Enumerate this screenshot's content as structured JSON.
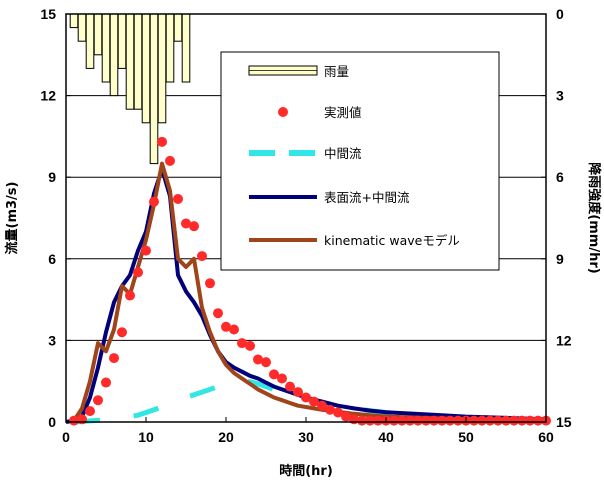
{
  "chart_data": {
    "type": "line",
    "title": "",
    "xlabel": "時間(hr)",
    "ylabel": "流量(m3/s)",
    "y2label": "降雨強度(mm/hr)",
    "xlim": [
      0,
      60
    ],
    "ylim": [
      0,
      15
    ],
    "y2lim": [
      0,
      15
    ],
    "y2_inverted": true,
    "grid": "horizontal",
    "legend_position": "top-right",
    "x_ticks": [
      "0",
      "10",
      "20",
      "30",
      "40",
      "50",
      "60"
    ],
    "y_ticks": [
      "0",
      "3",
      "6",
      "9",
      "12",
      "15"
    ],
    "y2_ticks": [
      "15",
      "12",
      "9",
      "6",
      "3",
      "0"
    ],
    "colors": {
      "rain_fill": "#FFFFCC",
      "observed": "#FF2A2A",
      "interflow": "#33E6E6",
      "surface_interflow": "#00007A",
      "kinematic": "#A0441A",
      "grid": "#000000"
    },
    "rain": {
      "name": "雨量",
      "x": [
        1,
        2,
        3,
        4,
        5,
        6,
        7,
        8,
        9,
        10,
        11,
        12,
        13,
        14,
        15
      ],
      "values": [
        0.5,
        1.0,
        2.0,
        1.5,
        2.5,
        3.0,
        2.0,
        3.5,
        3.5,
        4.0,
        5.5,
        4.0,
        2.5,
        1.0,
        2.5
      ]
    },
    "series": [
      {
        "name": "実測値",
        "kind": "markers",
        "x": [
          1,
          2,
          3,
          4,
          5,
          6,
          7,
          8,
          9,
          10,
          11,
          12,
          13,
          14,
          15,
          16,
          17,
          18,
          19,
          20,
          21,
          22,
          23,
          24,
          25,
          26,
          27,
          28,
          29,
          30,
          31,
          32,
          33,
          34,
          35,
          36,
          37,
          38,
          39,
          40,
          41,
          42,
          43,
          44,
          45,
          46,
          47,
          48,
          49,
          50,
          51,
          52,
          53,
          54,
          55,
          56,
          57,
          58,
          59,
          60
        ],
        "values": [
          0.05,
          0.1,
          0.4,
          0.8,
          1.45,
          2.35,
          3.3,
          4.65,
          5.5,
          6.3,
          8.1,
          10.3,
          9.6,
          8.2,
          7.3,
          7.2,
          6.1,
          5.1,
          4.0,
          3.5,
          3.4,
          2.9,
          2.8,
          2.3,
          2.2,
          1.75,
          1.6,
          1.3,
          1.1,
          0.9,
          0.75,
          0.6,
          0.45,
          0.35,
          0.2,
          0.1,
          0.05,
          0.05,
          0.05,
          0.05,
          0.05,
          0.05,
          0.05,
          0.05,
          0.05,
          0.05,
          0.05,
          0.05,
          0.05,
          0.05,
          0.05,
          0.05,
          0.05,
          0.05,
          0.05,
          0.05,
          0.05,
          0.05,
          0.05,
          0.05
        ]
      },
      {
        "name": "中間流",
        "kind": "dashed",
        "x": [
          1,
          2,
          3,
          4,
          5,
          6,
          7,
          8,
          9,
          10,
          11,
          12,
          13,
          14,
          15,
          16,
          17,
          18,
          19,
          20,
          21,
          22,
          23,
          24,
          25,
          26,
          27,
          28,
          29,
          30,
          31,
          32,
          33,
          34,
          35,
          36,
          37,
          38,
          39,
          40,
          41,
          42,
          43,
          44,
          45,
          46,
          47,
          48,
          49,
          50,
          51,
          52,
          53,
          54,
          55,
          56,
          57,
          58,
          59,
          60
        ],
        "values": [
          0.0,
          0.02,
          0.04,
          0.06,
          0.08,
          0.12,
          0.15,
          0.2,
          0.25,
          0.35,
          0.45,
          0.55,
          0.65,
          0.75,
          0.9,
          1.0,
          1.1,
          1.2,
          1.3,
          1.38,
          1.45,
          1.5,
          1.48,
          1.4,
          1.3,
          1.2,
          1.1,
          1.0,
          0.92,
          0.85,
          0.78,
          0.72,
          0.66,
          0.6,
          0.55,
          0.5,
          0.46,
          0.42,
          0.38,
          0.35,
          0.32,
          0.3,
          0.28,
          0.26,
          0.24,
          0.22,
          0.21,
          0.2,
          0.19,
          0.18,
          0.17,
          0.16,
          0.15,
          0.14,
          0.13,
          0.12,
          0.11,
          0.1,
          0.1,
          0.1
        ]
      },
      {
        "name": "表面流+中間流",
        "kind": "line",
        "x": [
          0,
          1,
          2,
          3,
          4,
          5,
          6,
          7,
          8,
          9,
          10,
          11,
          12,
          13,
          14,
          15,
          16,
          17,
          18,
          19,
          20,
          21,
          22,
          23,
          24,
          25,
          26,
          27,
          28,
          29,
          30,
          32,
          34,
          36,
          38,
          40,
          45,
          50,
          55,
          60
        ],
        "values": [
          0.0,
          0.05,
          0.2,
          0.9,
          2.0,
          3.3,
          4.4,
          5.0,
          5.4,
          6.3,
          7.0,
          8.4,
          9.3,
          8.3,
          5.4,
          4.8,
          4.4,
          3.9,
          3.2,
          2.6,
          2.2,
          2.0,
          1.85,
          1.7,
          1.6,
          1.45,
          1.3,
          1.2,
          1.1,
          1.0,
          0.9,
          0.75,
          0.6,
          0.5,
          0.42,
          0.36,
          0.28,
          0.2,
          0.15,
          0.1
        ]
      },
      {
        "name": "kinematic waveモデル",
        "kind": "line",
        "x": [
          1,
          2,
          3,
          4,
          5,
          6,
          7,
          8,
          9,
          10,
          11,
          12,
          13,
          14,
          15,
          16,
          17,
          18,
          19,
          20,
          21,
          22,
          23,
          24,
          25,
          26,
          27,
          28,
          29,
          30,
          32,
          34,
          36,
          38,
          40,
          45,
          50,
          55,
          60
        ],
        "values": [
          0.05,
          0.5,
          1.5,
          2.9,
          2.6,
          3.4,
          5.0,
          4.7,
          5.7,
          6.7,
          8.0,
          9.5,
          8.5,
          6.0,
          5.7,
          6.0,
          4.2,
          3.3,
          2.6,
          2.1,
          1.8,
          1.6,
          1.4,
          1.2,
          1.05,
          0.9,
          0.8,
          0.7,
          0.6,
          0.55,
          0.45,
          0.38,
          0.3,
          0.25,
          0.2,
          0.15,
          0.1,
          0.08,
          0.05
        ]
      }
    ]
  }
}
